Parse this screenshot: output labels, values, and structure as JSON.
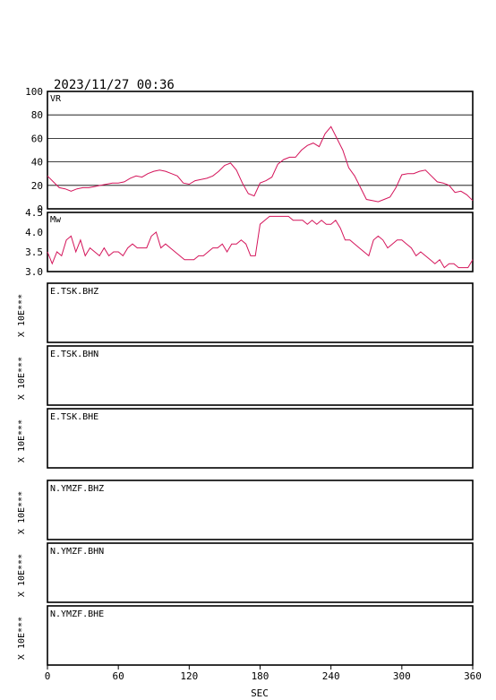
{
  "timestamp": "2023/11/27 00:36",
  "colors": {
    "trace": "#d4145a",
    "frame": "#000000",
    "grid": "#000000"
  },
  "chart_data": [
    {
      "type": "line",
      "label": "VR",
      "ylim": [
        0,
        100
      ],
      "yticks": [
        "100",
        "80",
        "60",
        "40",
        "20",
        "0"
      ],
      "grid": true,
      "x": [
        0,
        5,
        10,
        15,
        20,
        25,
        30,
        35,
        40,
        45,
        50,
        55,
        60,
        65,
        70,
        75,
        80,
        85,
        90,
        95,
        100,
        105,
        110,
        115,
        120,
        125,
        130,
        135,
        140,
        145,
        150,
        155,
        160,
        165,
        170,
        175,
        180,
        185,
        190,
        195,
        200,
        205,
        210,
        215,
        220,
        225,
        230,
        235,
        240,
        245,
        250,
        255,
        260,
        265,
        270,
        275,
        280,
        285,
        290,
        295,
        300,
        305,
        310,
        315,
        320,
        325,
        330,
        335,
        340,
        345,
        350,
        355,
        360
      ],
      "values": [
        28,
        23,
        18,
        17,
        15,
        17,
        18,
        18,
        19,
        20,
        21,
        22,
        22,
        23,
        26,
        28,
        27,
        30,
        32,
        33,
        32,
        30,
        28,
        22,
        21,
        24,
        25,
        26,
        28,
        32,
        37,
        39,
        33,
        22,
        13,
        11,
        22,
        24,
        27,
        38,
        42,
        44,
        44,
        50,
        54,
        56,
        53,
        64,
        70,
        60,
        50,
        35,
        28,
        18,
        8,
        7,
        6,
        8,
        10,
        18,
        29,
        30,
        30,
        32,
        33,
        28,
        23,
        22,
        20,
        14,
        15,
        12,
        7
      ]
    },
    {
      "type": "line",
      "label": "Mw",
      "ylim": [
        3.0,
        4.5
      ],
      "yticks": [
        "4.5",
        "4.0",
        "3.5",
        "3.0"
      ],
      "grid": false,
      "x": [
        0,
        4,
        8,
        12,
        16,
        20,
        24,
        28,
        32,
        36,
        40,
        44,
        48,
        52,
        56,
        60,
        64,
        68,
        72,
        76,
        80,
        84,
        88,
        92,
        96,
        100,
        104,
        108,
        112,
        116,
        120,
        124,
        128,
        132,
        136,
        140,
        144,
        148,
        152,
        156,
        160,
        164,
        168,
        172,
        176,
        180,
        184,
        188,
        192,
        196,
        200,
        204,
        208,
        212,
        216,
        220,
        224,
        228,
        232,
        236,
        240,
        244,
        248,
        252,
        256,
        260,
        264,
        268,
        272,
        276,
        280,
        284,
        288,
        292,
        296,
        300,
        304,
        308,
        312,
        316,
        320,
        324,
        328,
        332,
        336,
        340,
        344,
        348,
        352,
        356,
        360
      ],
      "values": [
        3.5,
        3.2,
        3.5,
        3.4,
        3.8,
        3.9,
        3.5,
        3.8,
        3.4,
        3.6,
        3.5,
        3.4,
        3.6,
        3.4,
        3.5,
        3.5,
        3.4,
        3.6,
        3.7,
        3.6,
        3.6,
        3.6,
        3.9,
        4.0,
        3.6,
        3.7,
        3.6,
        3.5,
        3.4,
        3.3,
        3.3,
        3.3,
        3.4,
        3.4,
        3.5,
        3.6,
        3.6,
        3.7,
        3.5,
        3.7,
        3.7,
        3.8,
        3.7,
        3.4,
        3.4,
        4.2,
        4.3,
        4.4,
        4.4,
        4.4,
        4.4,
        4.4,
        4.3,
        4.3,
        4.3,
        4.2,
        4.3,
        4.2,
        4.3,
        4.2,
        4.2,
        4.3,
        4.1,
        3.8,
        3.8,
        3.7,
        3.6,
        3.5,
        3.4,
        3.8,
        3.9,
        3.8,
        3.6,
        3.7,
        3.8,
        3.8,
        3.7,
        3.6,
        3.4,
        3.5,
        3.4,
        3.3,
        3.2,
        3.3,
        3.1,
        3.2,
        3.2,
        3.1,
        3.1,
        3.1,
        3.3
      ]
    }
  ],
  "stations": [
    {
      "label": "E.TSK.BHZ",
      "ylabel": "X 10E***"
    },
    {
      "label": "E.TSK.BHN",
      "ylabel": "X 10E***"
    },
    {
      "label": "E.TSK.BHE",
      "ylabel": "X 10E***"
    },
    {
      "label": "N.YMZF.BHZ",
      "ylabel": "X 10E***"
    },
    {
      "label": "N.YMZF.BHN",
      "ylabel": "X 10E***"
    },
    {
      "label": "N.YMZF.BHE",
      "ylabel": "X 10E***"
    }
  ],
  "xaxis": {
    "label": "SEC",
    "xlim": [
      0,
      360
    ],
    "ticks": [
      "0",
      "60",
      "120",
      "180",
      "240",
      "300",
      "360"
    ]
  }
}
